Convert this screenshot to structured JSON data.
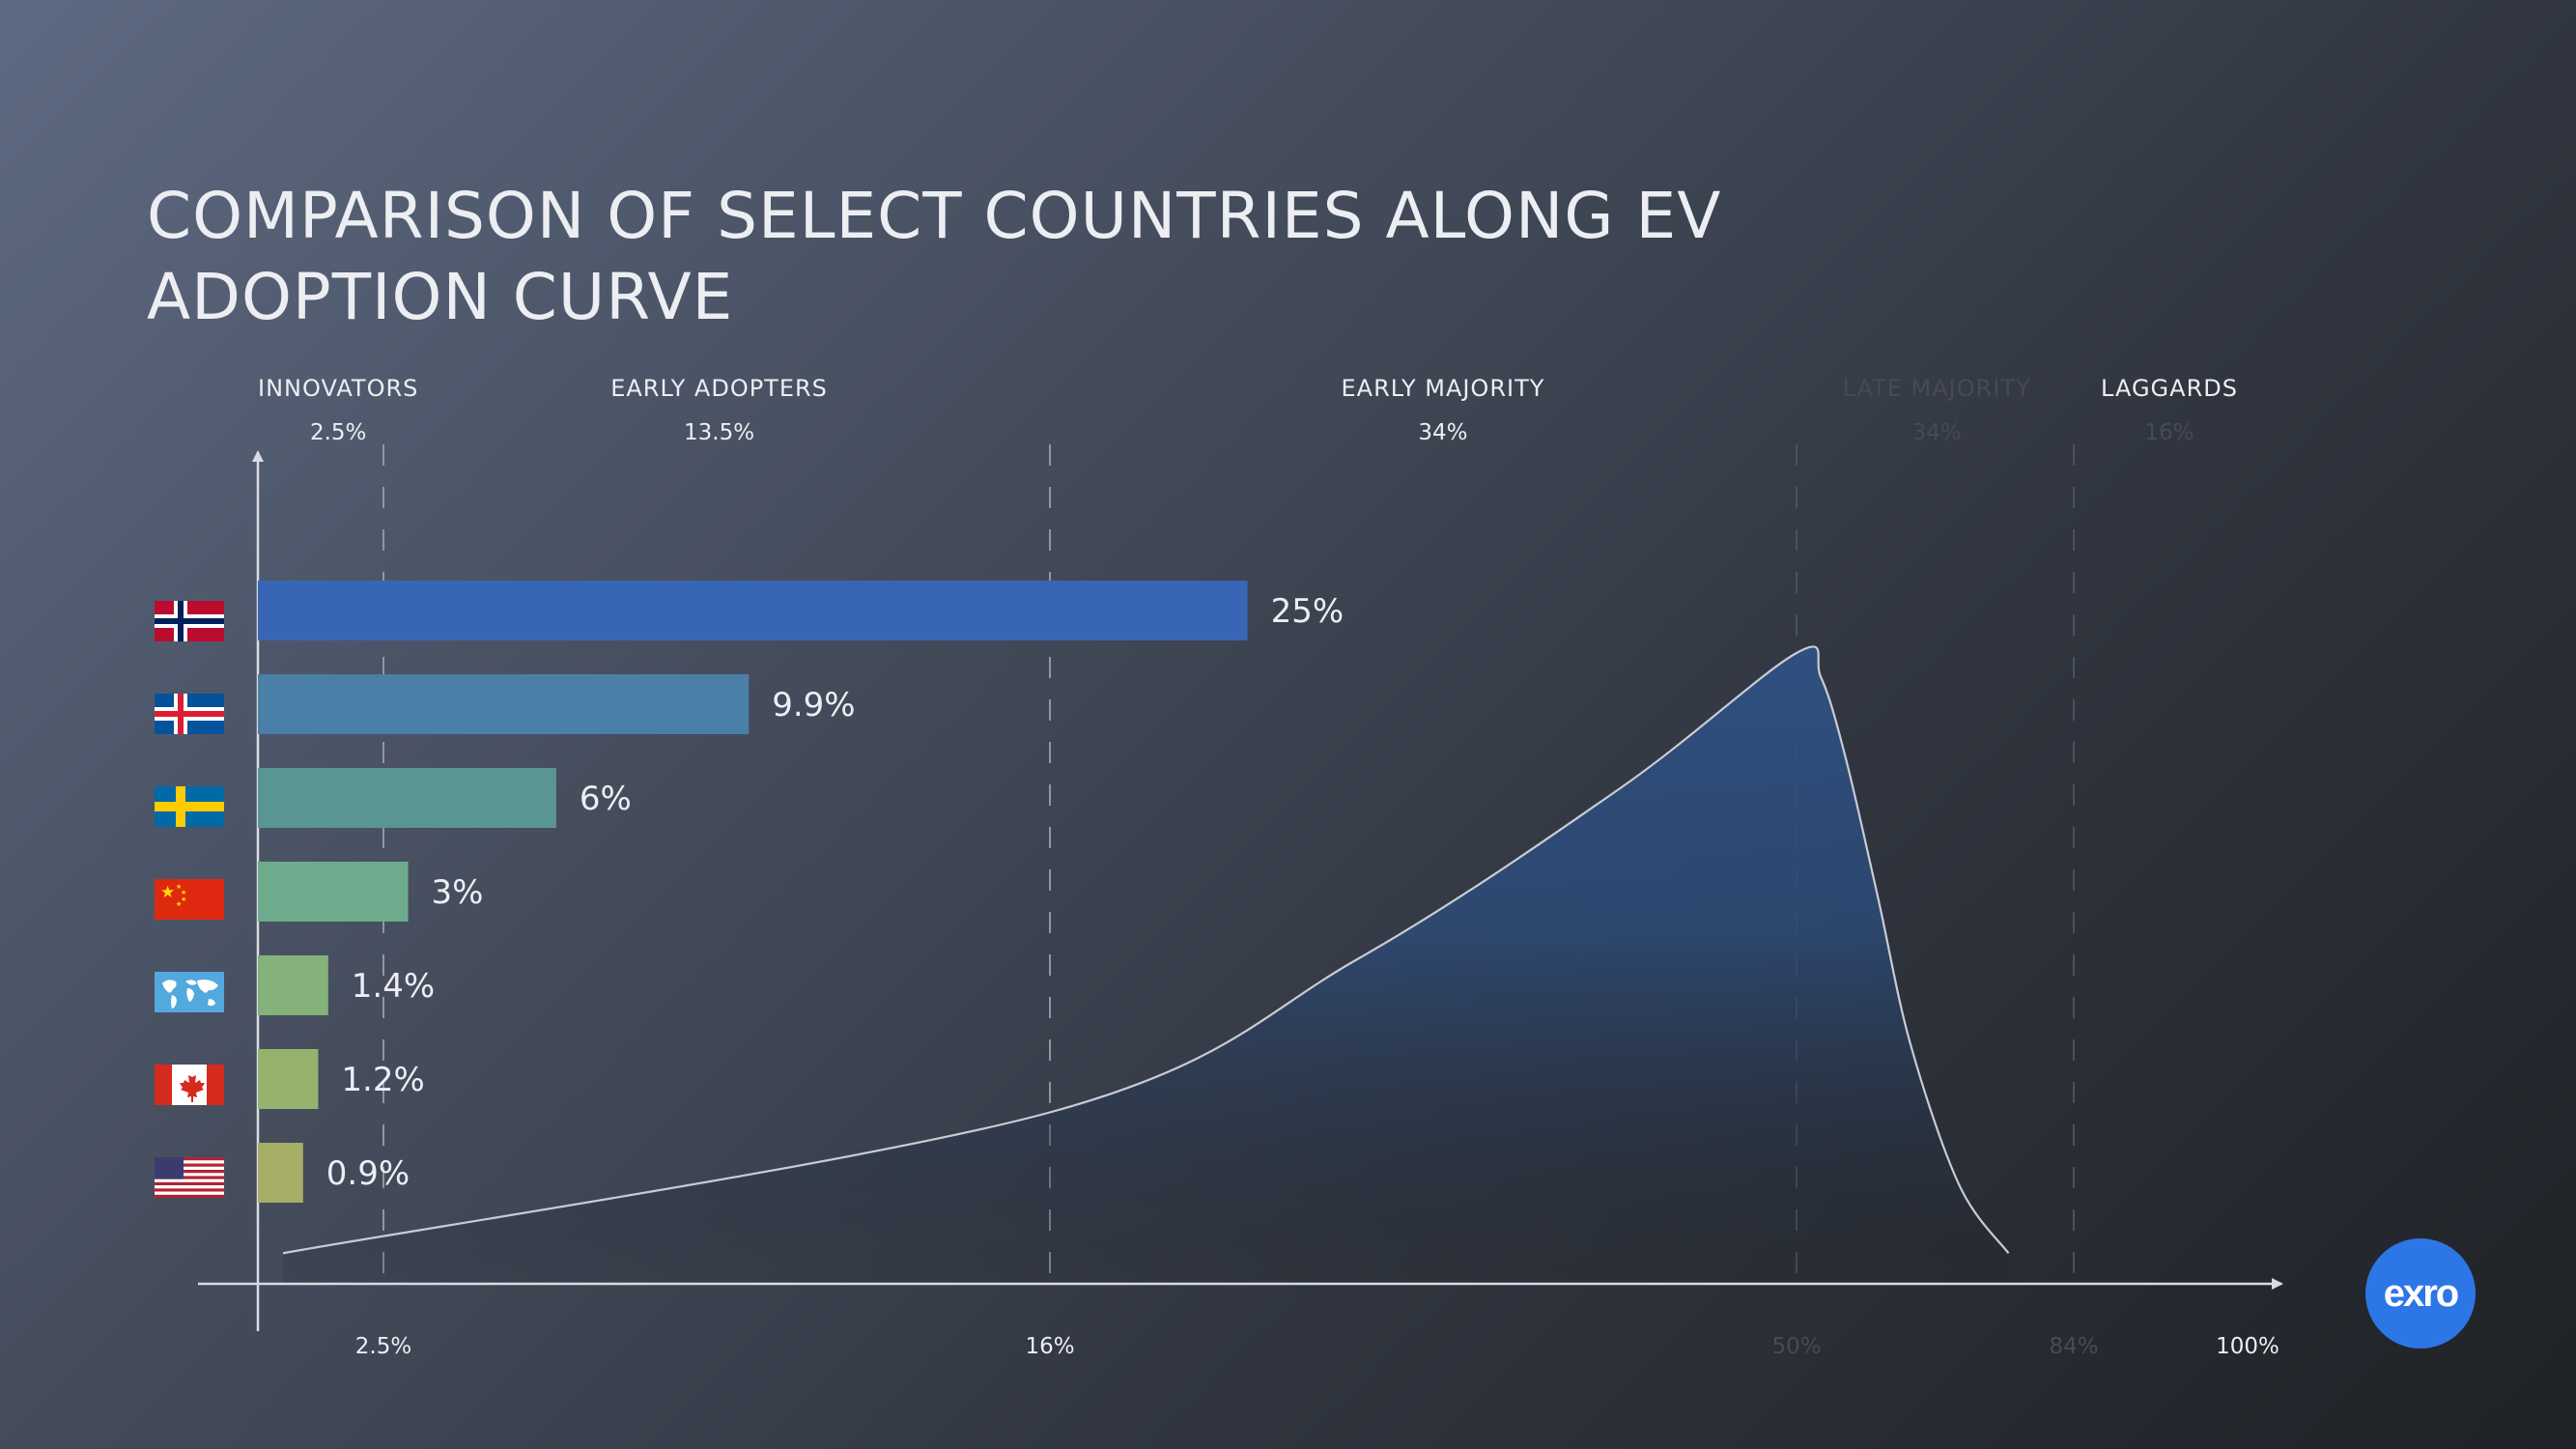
{
  "title": "COMPARISON OF SELECT COUNTRIES ALONG EV ADOPTION CURVE",
  "logo_text": "exro",
  "colors": {
    "text": "#eceef2",
    "faded_text": "#464b53",
    "axis": "#d9dce2",
    "curve_fill": "#2e5183",
    "logo": "#2d76e6"
  },
  "chart_data": {
    "type": "bar",
    "orientation": "horizontal",
    "title": "COMPARISON OF SELECT COUNTRIES ALONG EV ADOPTION CURVE",
    "x_scale": "cumulative adoption %",
    "categories": [
      "norway-flag-icon",
      "iceland-flag-icon",
      "sweden-flag-icon",
      "china-flag-icon",
      "world-map-icon",
      "canada-flag-icon",
      "usa-flag-icon"
    ],
    "values": [
      25,
      9.9,
      6,
      3,
      1.4,
      1.2,
      0.9
    ],
    "value_labels": [
      "25%",
      "9.9%",
      "6%",
      "3%",
      "1.4%",
      "1.2%",
      "0.9%"
    ],
    "bar_colors": [
      "#3866b4",
      "#4a7fa8",
      "#599693",
      "#6dab8c",
      "#85b17a",
      "#96b26f",
      "#a6ad65"
    ],
    "x_ticks": [
      {
        "value": 2.5,
        "label": "2.5%",
        "faded": false
      },
      {
        "value": 16,
        "label": "16%",
        "faded": false
      },
      {
        "value": 50,
        "label": "50%",
        "faded": true
      },
      {
        "value": 84,
        "label": "84%",
        "faded": true
      },
      {
        "value": 100,
        "label": "100%",
        "faded": false
      }
    ],
    "segments": [
      {
        "name": "INNOVATORS",
        "share": "2.5%",
        "center": 1.6,
        "faded_name": false,
        "faded_share": false
      },
      {
        "name": "EARLY ADOPTERS",
        "share": "13.5%",
        "center": 9.3,
        "faded_name": false,
        "faded_share": false
      },
      {
        "name": "EARLY MAJORITY",
        "share": "34%",
        "center": 33.9,
        "faded_name": false,
        "faded_share": false
      },
      {
        "name": "LATE MAJORITY",
        "share": "34%",
        "center": 67.2,
        "faded_name": true,
        "faded_share": true
      },
      {
        "name": "LAGGARDS",
        "share": "16%",
        "center": 92.8,
        "faded_name": false,
        "faded_share": true
      }
    ],
    "divider_values": [
      2.5,
      16,
      50,
      84
    ],
    "curve": [
      [
        0.5,
        0.02
      ],
      [
        16,
        0.25
      ],
      [
        30,
        0.5
      ],
      [
        42,
        0.78
      ],
      [
        50,
        1
      ],
      [
        53,
        0.96
      ],
      [
        56,
        0.83
      ],
      [
        60,
        0.6
      ],
      [
        64,
        0.36
      ],
      [
        70,
        0.13
      ],
      [
        76,
        0.02
      ]
    ],
    "grid": false
  }
}
